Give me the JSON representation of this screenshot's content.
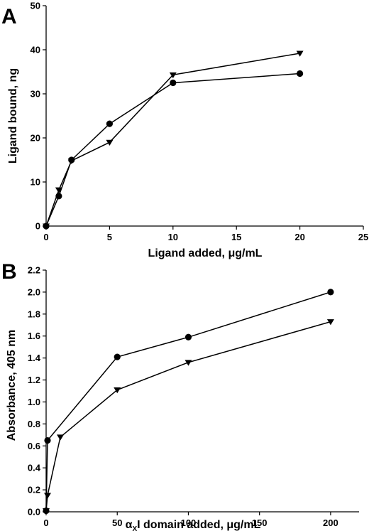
{
  "chart_data": [
    {
      "panel": "A",
      "type": "line",
      "xlabel": "Ligand added, μg/mL",
      "ylabel": "Ligand bound, ng",
      "xlim": [
        0,
        25
      ],
      "ylim": [
        0,
        50
      ],
      "xticks": [
        0,
        5,
        10,
        15,
        20,
        25
      ],
      "yticks": [
        0,
        10,
        20,
        30,
        40,
        50
      ],
      "x_tick_labels": [
        "0",
        "5",
        "10",
        "15",
        "20",
        "25"
      ],
      "y_tick_labels": [
        "0",
        "10",
        "20",
        "30",
        "40",
        "50"
      ],
      "grid": false,
      "series": [
        {
          "marker": "circle",
          "x": [
            0,
            1,
            2,
            5,
            10,
            20
          ],
          "y": [
            0,
            6.8,
            15,
            23.2,
            32.5,
            34.6
          ]
        },
        {
          "marker": "triangle-down",
          "x": [
            0,
            1,
            2,
            5,
            10,
            20
          ],
          "y": [
            0,
            8.2,
            14.8,
            19,
            34.3,
            39.2
          ]
        }
      ]
    },
    {
      "panel": "B",
      "type": "line",
      "xlabel_main": "α",
      "xlabel_sub": "X",
      "xlabel_rest": "I domain added, μg/mL",
      "ylabel": "Absorbance, 405 nm",
      "xlim": [
        0,
        220
      ],
      "ylim": [
        0,
        2.2
      ],
      "xticks": [
        0,
        50,
        100,
        150,
        200
      ],
      "yticks": [
        0,
        0.2,
        0.4,
        0.6,
        0.8,
        1.0,
        1.2,
        1.4,
        1.6,
        1.8,
        2.0,
        2.2
      ],
      "x_tick_labels": [
        "0",
        "50",
        "100",
        "150",
        "200"
      ],
      "y_tick_labels": [
        "0.0",
        "0.2",
        "0.4",
        "0.6",
        "0.8",
        "1.0",
        "1.2",
        "1.4",
        "1.6",
        "1.8",
        "2.0",
        "2.2"
      ],
      "grid": false,
      "series": [
        {
          "marker": "circle",
          "x": [
            0,
            1,
            50,
            100,
            200
          ],
          "y": [
            0.01,
            0.65,
            1.41,
            1.59,
            2.0
          ]
        },
        {
          "marker": "triangle-down",
          "x": [
            0,
            1,
            10,
            50,
            100,
            200
          ],
          "y": [
            0.01,
            0.15,
            0.68,
            1.11,
            1.36,
            1.73
          ]
        }
      ]
    }
  ]
}
